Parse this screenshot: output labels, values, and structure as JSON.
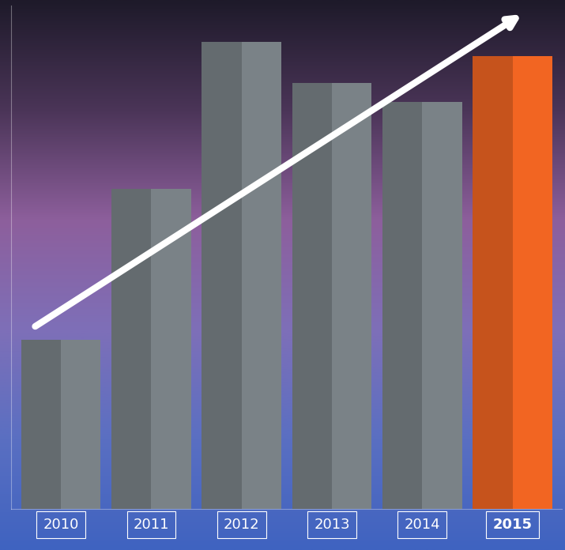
{
  "chart_data": {
    "type": "bar",
    "categories": [
      "2010",
      "2011",
      "2012",
      "2013",
      "2014",
      "2015"
    ],
    "values": [
      37,
      70,
      102,
      93,
      89,
      99
    ],
    "colors": [
      "#7a8287",
      "#7a8287",
      "#7a8287",
      "#7a8287",
      "#7a8287",
      "#f26522"
    ],
    "ylim": [
      0,
      110
    ],
    "tick_labels": "x",
    "grid": false
  }
}
